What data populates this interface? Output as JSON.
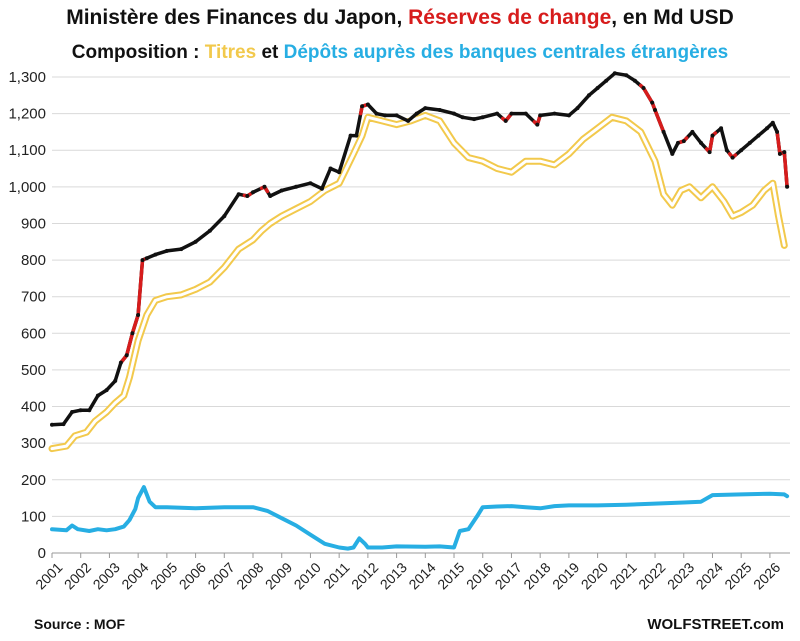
{
  "title": {
    "prefix": "Ministère des Finances du Japon, ",
    "highlight": "Réserves de change",
    "suffix": ", en Md USD"
  },
  "subtitle": {
    "prefix": "Composition : ",
    "securities": "Titres",
    "middle": " et ",
    "deposits": "Dépôts auprès des banques centrales étrangères"
  },
  "source": "Source : MOF",
  "brand": "WOLFSTREET.com",
  "colors": {
    "total": "#111111",
    "total_highlight": "#d71c1c",
    "securities": "#f2c94c",
    "deposits": "#27aee3",
    "grid": "#d9d9d9"
  },
  "chart_data": {
    "type": "line",
    "title": "Ministère des Finances du Japon, Réserves de change, en Md USD",
    "xlabel": "",
    "ylabel": "",
    "xlim": [
      2001,
      2026.7
    ],
    "ylim": [
      0,
      1300
    ],
    "grid": true,
    "x_ticks": [
      "2001",
      "2002",
      "2003",
      "2004",
      "2005",
      "2006",
      "2007",
      "2008",
      "2009",
      "2010",
      "2011",
      "2012",
      "2013",
      "2014",
      "2015",
      "2016",
      "2017",
      "2018",
      "2019",
      "2020",
      "2021",
      "2022",
      "2023",
      "2024",
      "2025",
      "2026"
    ],
    "y_ticks": [
      "0",
      "100",
      "200",
      "300",
      "400",
      "500",
      "600",
      "700",
      "800",
      "900",
      "1,000",
      "1,100",
      "1,200",
      "1,300"
    ],
    "series": [
      {
        "name": "Réserves de change",
        "points": [
          [
            2001.0,
            350
          ],
          [
            2001.4,
            352
          ],
          [
            2001.7,
            385
          ],
          [
            2002.0,
            390
          ],
          [
            2002.3,
            390
          ],
          [
            2002.6,
            430
          ],
          [
            2002.9,
            445
          ],
          [
            2003.2,
            470
          ],
          [
            2003.4,
            520
          ],
          [
            2003.6,
            540
          ],
          [
            2003.8,
            600
          ],
          [
            2004.0,
            650
          ],
          [
            2004.15,
            800
          ],
          [
            2004.3,
            805
          ],
          [
            2004.6,
            815
          ],
          [
            2005.0,
            825
          ],
          [
            2005.5,
            830
          ],
          [
            2006.0,
            850
          ],
          [
            2006.5,
            880
          ],
          [
            2007.0,
            920
          ],
          [
            2007.5,
            980
          ],
          [
            2007.8,
            975
          ],
          [
            2008.0,
            985
          ],
          [
            2008.4,
            1000
          ],
          [
            2008.6,
            975
          ],
          [
            2009.0,
            990
          ],
          [
            2009.5,
            1000
          ],
          [
            2010.0,
            1010
          ],
          [
            2010.4,
            995
          ],
          [
            2010.7,
            1050
          ],
          [
            2011.0,
            1040
          ],
          [
            2011.4,
            1140
          ],
          [
            2011.6,
            1140
          ],
          [
            2011.8,
            1220
          ],
          [
            2012.0,
            1225
          ],
          [
            2012.3,
            1200
          ],
          [
            2012.6,
            1195
          ],
          [
            2013.0,
            1195
          ],
          [
            2013.4,
            1180
          ],
          [
            2013.7,
            1200
          ],
          [
            2014.0,
            1215
          ],
          [
            2014.5,
            1210
          ],
          [
            2015.0,
            1200
          ],
          [
            2015.3,
            1190
          ],
          [
            2015.7,
            1185
          ],
          [
            2016.0,
            1190
          ],
          [
            2016.5,
            1200
          ],
          [
            2016.8,
            1180
          ],
          [
            2017.0,
            1200
          ],
          [
            2017.5,
            1200
          ],
          [
            2017.9,
            1170
          ],
          [
            2018.0,
            1195
          ],
          [
            2018.5,
            1200
          ],
          [
            2019.0,
            1195
          ],
          [
            2019.3,
            1215
          ],
          [
            2019.7,
            1250
          ],
          [
            2020.0,
            1270
          ],
          [
            2020.3,
            1290
          ],
          [
            2020.6,
            1310
          ],
          [
            2021.0,
            1305
          ],
          [
            2021.3,
            1290
          ],
          [
            2021.6,
            1270
          ],
          [
            2021.9,
            1230
          ],
          [
            2022.0,
            1210
          ],
          [
            2022.3,
            1150
          ],
          [
            2022.6,
            1090
          ],
          [
            2022.8,
            1120
          ],
          [
            2023.0,
            1125
          ],
          [
            2023.3,
            1150
          ],
          [
            2023.6,
            1120
          ],
          [
            2023.9,
            1095
          ],
          [
            2024.0,
            1140
          ],
          [
            2024.3,
            1160
          ],
          [
            2024.5,
            1100
          ],
          [
            2024.7,
            1080
          ],
          [
            2025.0,
            1100
          ],
          [
            2025.3,
            1120
          ],
          [
            2025.6,
            1140
          ],
          [
            2025.9,
            1160
          ],
          [
            2026.1,
            1175
          ],
          [
            2026.25,
            1150
          ],
          [
            2026.35,
            1090
          ],
          [
            2026.5,
            1095
          ],
          [
            2026.6,
            1000
          ]
        ]
      },
      {
        "name": "Titres",
        "points": [
          [
            2001.0,
            285
          ],
          [
            2001.5,
            292
          ],
          [
            2001.8,
            320
          ],
          [
            2002.2,
            330
          ],
          [
            2002.5,
            360
          ],
          [
            2002.9,
            385
          ],
          [
            2003.2,
            410
          ],
          [
            2003.5,
            430
          ],
          [
            2003.7,
            480
          ],
          [
            2004.0,
            580
          ],
          [
            2004.3,
            650
          ],
          [
            2004.6,
            690
          ],
          [
            2005.0,
            700
          ],
          [
            2005.5,
            705
          ],
          [
            2006.0,
            720
          ],
          [
            2006.5,
            740
          ],
          [
            2007.0,
            780
          ],
          [
            2007.5,
            830
          ],
          [
            2008.0,
            855
          ],
          [
            2008.3,
            880
          ],
          [
            2008.6,
            900
          ],
          [
            2009.0,
            920
          ],
          [
            2009.5,
            940
          ],
          [
            2010.0,
            960
          ],
          [
            2010.5,
            990
          ],
          [
            2011.0,
            1010
          ],
          [
            2011.5,
            1090
          ],
          [
            2011.8,
            1140
          ],
          [
            2012.0,
            1190
          ],
          [
            2012.5,
            1180
          ],
          [
            2013.0,
            1170
          ],
          [
            2013.5,
            1180
          ],
          [
            2014.0,
            1195
          ],
          [
            2014.5,
            1180
          ],
          [
            2015.0,
            1120
          ],
          [
            2015.5,
            1080
          ],
          [
            2016.0,
            1070
          ],
          [
            2016.5,
            1050
          ],
          [
            2017.0,
            1040
          ],
          [
            2017.5,
            1070
          ],
          [
            2018.0,
            1070
          ],
          [
            2018.5,
            1060
          ],
          [
            2019.0,
            1090
          ],
          [
            2019.5,
            1130
          ],
          [
            2020.0,
            1160
          ],
          [
            2020.5,
            1190
          ],
          [
            2021.0,
            1180
          ],
          [
            2021.5,
            1150
          ],
          [
            2022.0,
            1070
          ],
          [
            2022.3,
            980
          ],
          [
            2022.6,
            950
          ],
          [
            2022.9,
            990
          ],
          [
            2023.2,
            1000
          ],
          [
            2023.6,
            970
          ],
          [
            2024.0,
            1000
          ],
          [
            2024.4,
            960
          ],
          [
            2024.7,
            920
          ],
          [
            2025.0,
            930
          ],
          [
            2025.4,
            950
          ],
          [
            2025.8,
            990
          ],
          [
            2026.1,
            1010
          ],
          [
            2026.3,
            920
          ],
          [
            2026.5,
            840
          ]
        ]
      },
      {
        "name": "Dépôts auprès des banques centrales étrangères",
        "points": [
          [
            2001.0,
            65
          ],
          [
            2001.5,
            62
          ],
          [
            2001.7,
            75
          ],
          [
            2001.9,
            65
          ],
          [
            2002.3,
            60
          ],
          [
            2002.6,
            65
          ],
          [
            2002.9,
            62
          ],
          [
            2003.2,
            65
          ],
          [
            2003.5,
            72
          ],
          [
            2003.7,
            90
          ],
          [
            2003.9,
            120
          ],
          [
            2004.0,
            150
          ],
          [
            2004.2,
            180
          ],
          [
            2004.4,
            140
          ],
          [
            2004.6,
            125
          ],
          [
            2005.0,
            125
          ],
          [
            2006.0,
            122
          ],
          [
            2007.0,
            125
          ],
          [
            2008.0,
            125
          ],
          [
            2008.5,
            115
          ],
          [
            2009.0,
            95
          ],
          [
            2009.5,
            75
          ],
          [
            2010.0,
            50
          ],
          [
            2010.5,
            25
          ],
          [
            2011.0,
            15
          ],
          [
            2011.3,
            12
          ],
          [
            2011.5,
            15
          ],
          [
            2011.7,
            40
          ],
          [
            2011.9,
            25
          ],
          [
            2012.0,
            15
          ],
          [
            2012.5,
            15
          ],
          [
            2013.0,
            18
          ],
          [
            2014.0,
            17
          ],
          [
            2014.5,
            18
          ],
          [
            2015.0,
            15
          ],
          [
            2015.2,
            60
          ],
          [
            2015.5,
            65
          ],
          [
            2015.8,
            100
          ],
          [
            2016.0,
            125
          ],
          [
            2016.5,
            127
          ],
          [
            2017.0,
            128
          ],
          [
            2017.5,
            125
          ],
          [
            2018.0,
            122
          ],
          [
            2018.5,
            128
          ],
          [
            2019.0,
            130
          ],
          [
            2020.0,
            130
          ],
          [
            2021.0,
            132
          ],
          [
            2022.0,
            135
          ],
          [
            2023.0,
            138
          ],
          [
            2023.6,
            140
          ],
          [
            2024.0,
            158
          ],
          [
            2025.0,
            160
          ],
          [
            2026.0,
            162
          ],
          [
            2026.5,
            160
          ],
          [
            2026.6,
            155
          ]
        ]
      }
    ],
    "highlight_ranges": [
      [
        2003.4,
        2004.2
      ],
      [
        2007.7,
        2007.9
      ],
      [
        2008.3,
        2008.5
      ],
      [
        2011.75,
        2011.95
      ],
      [
        2016.7,
        2017.0
      ],
      [
        2017.8,
        2018.0
      ],
      [
        2021.5,
        2022.3
      ],
      [
        2022.8,
        2023.1
      ],
      [
        2023.8,
        2024.1
      ],
      [
        2024.6,
        2024.8
      ],
      [
        2026.25,
        2026.6
      ]
    ]
  }
}
